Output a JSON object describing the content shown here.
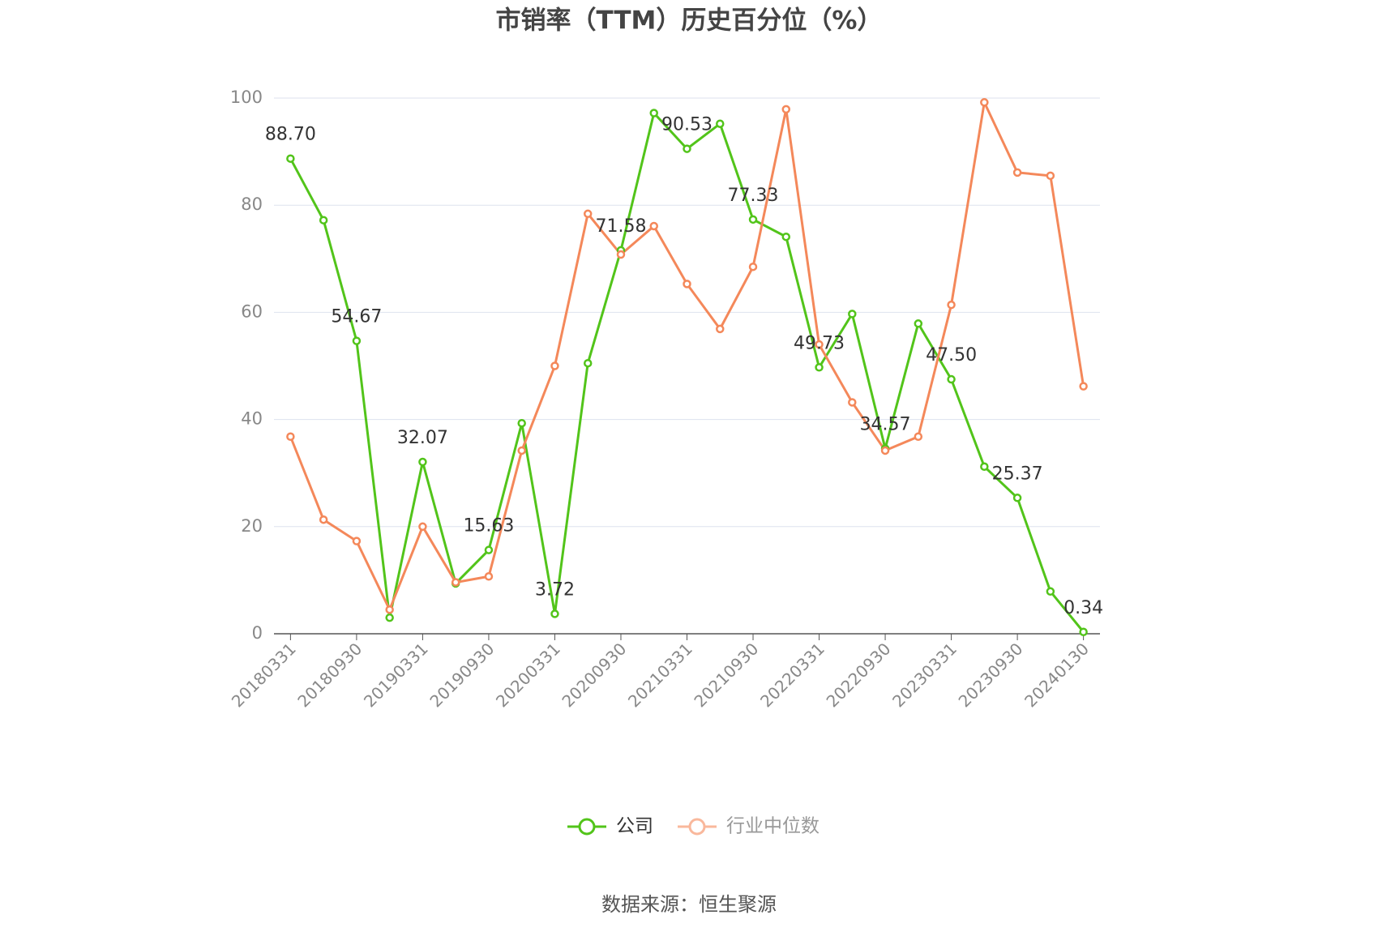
{
  "chart_data": {
    "type": "line",
    "title": "市销率（TTM）历史百分位（%）",
    "categories": [
      "20180331",
      null,
      "20180930",
      null,
      "20190331",
      null,
      "20190930",
      null,
      "20200331",
      null,
      "20200930",
      null,
      "20210331",
      null,
      "20210930",
      null,
      "20220331",
      null,
      "20220930",
      null,
      "20230331",
      null,
      "20230930",
      null,
      "20240130"
    ],
    "series": [
      {
        "name": "公司",
        "color": "#52c41a",
        "values": [
          88.7,
          77.2,
          54.67,
          3.0,
          32.07,
          9.4,
          15.63,
          39.3,
          3.72,
          50.5,
          71.58,
          97.2,
          90.53,
          95.2,
          77.33,
          74.1,
          49.73,
          59.7,
          34.57,
          57.9,
          47.5,
          31.2,
          25.37,
          7.9,
          0.34
        ],
        "value_labels": [
          "88.70",
          null,
          "54.67",
          null,
          "32.07",
          null,
          "15.63",
          null,
          "3.72",
          null,
          "71.58",
          null,
          "90.53",
          null,
          "77.33",
          null,
          "49.73",
          null,
          "34.57",
          null,
          "47.50",
          null,
          "25.37",
          null,
          "0.34"
        ]
      },
      {
        "name": "行业中位数",
        "color": "#f4885a",
        "values": [
          36.8,
          21.3,
          17.3,
          4.5,
          20.0,
          9.6,
          10.7,
          34.2,
          50.0,
          78.4,
          70.8,
          76.1,
          65.3,
          56.9,
          68.5,
          97.9,
          54.0,
          43.2,
          34.2,
          36.8,
          61.4,
          99.2,
          86.1,
          85.5,
          46.2
        ]
      }
    ],
    "ylim": [
      0,
      100
    ],
    "yticks": [
      0,
      20,
      40,
      60,
      80,
      100
    ],
    "grid": true,
    "legend": "bottom",
    "source": "数据来源：恒生聚源"
  }
}
